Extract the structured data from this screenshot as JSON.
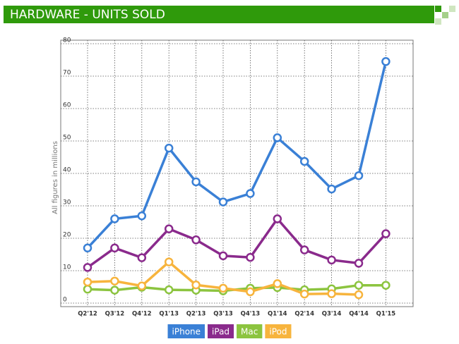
{
  "chart_data": {
    "type": "line",
    "title": "HARDWARE - UNITS SOLD",
    "y_label": "All figures in millions",
    "categories": [
      "Q2'12",
      "Q3'12",
      "Q4'12",
      "Q1'13",
      "Q2'13",
      "Q3'13",
      "Q4'13",
      "Q1'14",
      "Q2'14",
      "Q3'14",
      "Q4'14",
      "Q1'15"
    ],
    "series": [
      {
        "name": "iPhone",
        "color": "#3a80d6",
        "values": [
          17,
          26,
          26.9,
          47.8,
          37.4,
          31.2,
          33.8,
          51,
          43.7,
          35.2,
          39.3,
          74.5
        ]
      },
      {
        "name": "iPad",
        "color": "#8a2a8c",
        "values": [
          11,
          17,
          14,
          22.9,
          19.5,
          14.6,
          14.1,
          26,
          16.4,
          13.3,
          12.3,
          21.4
        ]
      },
      {
        "name": "Mac",
        "color": "#8cc43f",
        "values": [
          4.3,
          4,
          4.9,
          4.1,
          4,
          3.8,
          4.6,
          4.8,
          4.1,
          4.4,
          5.5,
          5.5
        ]
      },
      {
        "name": "iPod",
        "color": "#f7b43d",
        "values": [
          6.5,
          6.8,
          5.3,
          12.7,
          5.6,
          4.6,
          3.5,
          6,
          2.8,
          2.9,
          2.6,
          null
        ]
      }
    ],
    "ylim": [
      0,
      80
    ],
    "yticks": [
      0,
      10,
      20,
      30,
      40,
      50,
      60,
      70,
      80
    ],
    "grid": true,
    "legend": "bottom"
  }
}
